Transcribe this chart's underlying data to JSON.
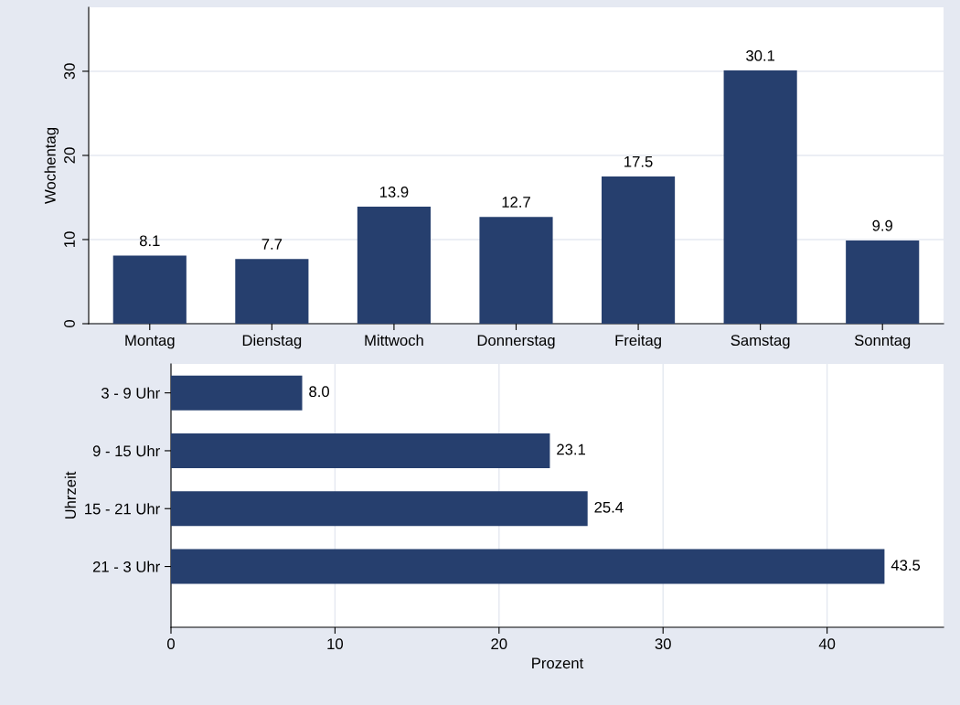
{
  "chart_data": [
    {
      "type": "bar",
      "ylabel": "Wochentag",
      "categories": [
        "Montag",
        "Dienstag",
        "Mittwoch",
        "Donnerstag",
        "Freitag",
        "Samstag",
        "Sonntag"
      ],
      "values": [
        8.1,
        7.7,
        13.9,
        12.7,
        17.5,
        30.1,
        9.9
      ],
      "color": "#263f6e",
      "ylim": [
        0,
        37.6
      ],
      "yticks": [
        0,
        10,
        20,
        30
      ],
      "grid": "y",
      "value_labels": [
        "8.1",
        "7.7",
        "13.9",
        "12.7",
        "17.5",
        "30.1",
        "9.9"
      ]
    },
    {
      "type": "bar",
      "orientation": "horizontal",
      "ylabel": "Uhrzeit",
      "xlabel": "Prozent",
      "categories": [
        "3 - 9 Uhr",
        "9 - 15 Uhr",
        "15 - 21 Uhr",
        "21 - 3 Uhr"
      ],
      "values": [
        8.0,
        23.1,
        25.4,
        43.5
      ],
      "color": "#263f6e",
      "xlim": [
        0,
        47.1
      ],
      "xticks": [
        0,
        10,
        20,
        30,
        40
      ],
      "grid": "x",
      "value_labels": [
        "8.0",
        "23.1",
        "25.4",
        "43.5"
      ]
    }
  ]
}
